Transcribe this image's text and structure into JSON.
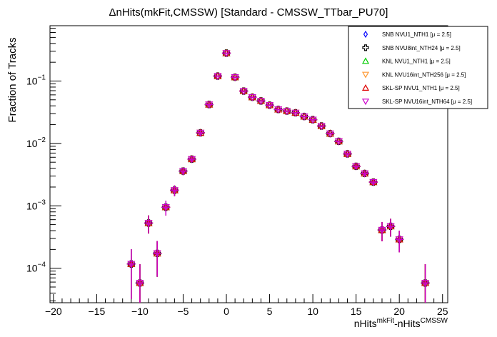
{
  "chart_data": {
    "type": "scatter",
    "title": "ΔnHits(mkFit,CMSSW) [Standard - CMSSW_TTbar_PU70]",
    "xlabel": {
      "base1": "nHits",
      "sup1": "mkFit",
      "sep": "-",
      "base2": "nHits",
      "sup2": "CMSSW"
    },
    "ylabel": "Fraction of Tracks",
    "xlim": [
      -20.4,
      25.6
    ],
    "ylim": [
      2.8e-05,
      0.77
    ],
    "yscale": "log",
    "xticks": [
      -20,
      -15,
      -10,
      -5,
      0,
      5,
      10,
      15,
      20,
      25
    ],
    "xtick_labels": [
      "−20",
      "−15",
      "−10",
      "−5",
      "0",
      "5",
      "10",
      "15",
      "20",
      "25"
    ],
    "yticks": [
      {
        "base": "10",
        "exp": "−1",
        "value": 0.1
      },
      {
        "base": "10",
        "exp": "−2",
        "value": 0.01
      },
      {
        "base": "10",
        "exp": "−3",
        "value": 0.001
      },
      {
        "base": "10",
        "exp": "−4",
        "value": 0.0001
      }
    ],
    "grid": false,
    "legend_position": "top-right",
    "x": [
      -11,
      -10,
      -9,
      -8,
      -7,
      -6,
      -5,
      -4,
      -3,
      -2,
      -1,
      0,
      1,
      2,
      3,
      4,
      5,
      6,
      7,
      8,
      9,
      10,
      11,
      12,
      13,
      14,
      15,
      16,
      17,
      18,
      19,
      20,
      23
    ],
    "y": [
      0.000117,
      5.8e-05,
      0.00053,
      0.000173,
      0.00095,
      0.00178,
      0.0036,
      0.0056,
      0.0148,
      0.042,
      0.12,
      0.28,
      0.115,
      0.069,
      0.055,
      0.048,
      0.041,
      0.035,
      0.033,
      0.031,
      0.027,
      0.024,
      0.019,
      0.0144,
      0.0108,
      0.0068,
      0.0043,
      0.0033,
      0.0024,
      0.00041,
      0.00047,
      0.00029,
      5.8e-05
    ],
    "yerr": [
      8.5e-05,
      5.8e-05,
      0.00017,
      0.0001,
      0.00025,
      0.00035,
      0.0005,
      0.0006,
      0.001,
      0.002,
      0.003,
      0.005,
      0.003,
      0.002,
      0.0015,
      0.0013,
      0.0011,
      0.001,
      0.0009,
      0.0009,
      0.0008,
      0.0007,
      0.0006,
      0.0005,
      0.0004,
      0.00035,
      0.0003,
      0.00025,
      0.00022,
      0.00014,
      0.00015,
      0.00011,
      5.8e-05
    ],
    "series": [
      {
        "name": "SNB NVU1_NTH1 [μ =  2.5]",
        "marker": "open-diamond",
        "color": "#0000ff"
      },
      {
        "name": "SNB NVU8int_NTH24 [μ =  2.5]",
        "marker": "open-cross",
        "color": "#000000"
      },
      {
        "name": "KNL NVU1_NTH1 [μ =  2.5]",
        "marker": "open-triangle-up",
        "color": "#00cc00"
      },
      {
        "name": "KNL NVU16int_NTH256 [μ =  2.5]",
        "marker": "open-triangle-down",
        "color": "#ff9933"
      },
      {
        "name": "SKL-SP NVU1_NTH1 [μ =  2.5]",
        "marker": "open-triangle-up",
        "color": "#dd0000"
      },
      {
        "name": "SKL-SP NVU16int_NTH64 [μ =  2.5]",
        "marker": "open-triangle-down",
        "color": "#cc00cc"
      }
    ]
  }
}
